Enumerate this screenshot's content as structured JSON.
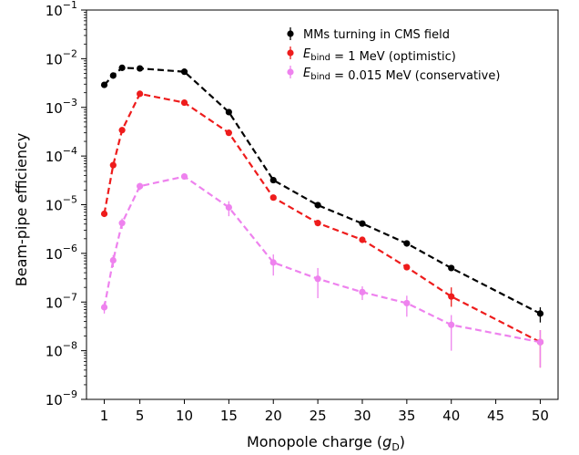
{
  "chart_data": {
    "type": "line",
    "title": "",
    "xlabel": "Monopole charge (",
    "xlabel_symbol": "g",
    "xlabel_sub": "D",
    "xlabel_close": ")",
    "ylabel": "Beam-pipe efficiency",
    "xlim": [
      -1,
      52
    ],
    "ylim_log10": [
      -9,
      -1
    ],
    "yscale": "log",
    "x_ticks": [
      1,
      5,
      10,
      15,
      20,
      25,
      30,
      35,
      40,
      45,
      50
    ],
    "y_ticks": [
      {
        "base": "10",
        "exp": "−9"
      },
      {
        "base": "10",
        "exp": "−8"
      },
      {
        "base": "10",
        "exp": "−7"
      },
      {
        "base": "10",
        "exp": "−6"
      },
      {
        "base": "10",
        "exp": "−5"
      },
      {
        "base": "10",
        "exp": "−4"
      },
      {
        "base": "10",
        "exp": "−3"
      },
      {
        "base": "10",
        "exp": "−2"
      },
      {
        "base": "10",
        "exp": "−1"
      }
    ],
    "grid": false,
    "legend_position": "top-right",
    "series": [
      {
        "name": "MMs turning in CMS field",
        "legend_parts": [
          [
            "MMs turning in CMS field",
            ""
          ]
        ],
        "color": "#000000",
        "linestyle": "dashed",
        "x": [
          1,
          2,
          3,
          5,
          10,
          15,
          20,
          25,
          30,
          35,
          40,
          50
        ],
        "y": [
          0.0029,
          0.0045,
          0.0065,
          0.0063,
          0.0054,
          0.0008,
          3.2e-05,
          9.8e-06,
          4.1e-06,
          1.6e-06,
          5e-07,
          5.8e-08
        ],
        "err_lo": [
          0,
          0,
          0,
          0,
          0,
          0,
          0,
          0,
          0,
          0,
          0,
          2e-08
        ],
        "err_hi": [
          0,
          0,
          0,
          0,
          0,
          0,
          0,
          0,
          0,
          0,
          0,
          2e-08
        ]
      },
      {
        "name": "Ebind = 1 MeV (optimistic)",
        "legend_parts": [
          [
            "E",
            ""
          ],
          [
            "bind",
            "sub"
          ],
          [
            " = 1 MeV (optimistic)",
            ""
          ]
        ],
        "color": "#ee1c1c",
        "linestyle": "dashed",
        "x": [
          1,
          2,
          3,
          5,
          10,
          15,
          20,
          25,
          30,
          35,
          40,
          50
        ],
        "y": [
          6.5e-06,
          6.5e-05,
          0.00034,
          0.0019,
          0.00125,
          0.0003,
          1.4e-05,
          4.2e-06,
          1.9e-06,
          5.2e-07,
          1.3e-07,
          1.5e-08
        ],
        "err_lo": [
          0,
          0,
          0,
          0,
          0,
          0,
          0,
          0,
          0,
          0,
          5e-08,
          1.05e-08
        ],
        "err_hi": [
          0,
          0,
          0,
          0,
          0,
          0,
          0,
          0,
          0,
          0,
          7e-08,
          1.15e-08
        ]
      },
      {
        "name": "Ebind = 0.015 MeV (conservative)",
        "legend_parts": [
          [
            "E",
            ""
          ],
          [
            "bind",
            "sub"
          ],
          [
            " = 0.015 MeV (conservative)",
            ""
          ]
        ],
        "color": "#ee82ee",
        "linestyle": "dashed",
        "x": [
          1,
          2,
          3,
          5,
          10,
          15,
          20,
          25,
          30,
          35,
          40,
          50
        ],
        "y": [
          7.8e-08,
          7.2e-07,
          4.2e-06,
          2.4e-05,
          3.8e-05,
          8.8e-06,
          6.5e-07,
          3e-07,
          1.6e-07,
          9.5e-08,
          3.4e-08,
          1.5e-08
        ],
        "err_lo": [
          2e-08,
          2e-07,
          1e-06,
          4e-06,
          5e-06,
          3e-06,
          3e-07,
          1.8e-07,
          5e-08,
          4.5e-08,
          2.4e-08,
          1.05e-08
        ],
        "err_hi": [
          2e-08,
          2e-07,
          1e-06,
          4e-06,
          5e-06,
          3e-06,
          3e-07,
          2e-07,
          5e-08,
          4e-08,
          2e-08,
          1.15e-08
        ]
      }
    ]
  }
}
